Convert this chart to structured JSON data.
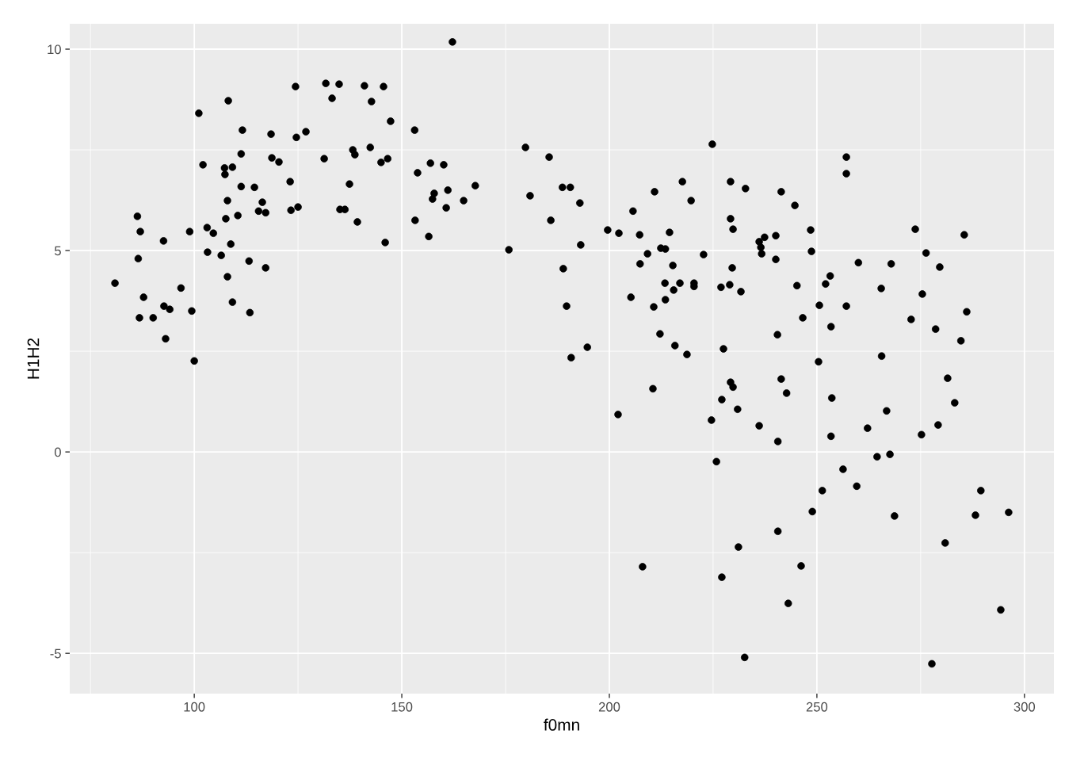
{
  "chart_data": {
    "type": "scatter",
    "xlabel": "f0mn",
    "ylabel": "H1H2",
    "xlim": [
      70.0,
      307.1
    ],
    "ylim": [
      -6.0,
      10.63
    ],
    "xticks": [
      100,
      150,
      200,
      250,
      300
    ],
    "yticks": [
      -5,
      0,
      5,
      10
    ],
    "grid": true,
    "marker": "circle",
    "series": [
      {
        "color": "#000000",
        "x": [
          80.9,
          86.3,
          86.5,
          87.0,
          86.8,
          87.8,
          90.1,
          92.6,
          92.7,
          93.1,
          94.1,
          96.8,
          98.9,
          99.4,
          100.0,
          101.1,
          102.1,
          103.1,
          103.2,
          104.6,
          106.5,
          107.3,
          107.4,
          107.6,
          108.0,
          108.0,
          108.2,
          108.8,
          109.2,
          109.2,
          110.5,
          111.3,
          111.3,
          111.6,
          113.2,
          113.4,
          114.5,
          115.5,
          116.4,
          117.2,
          117.2,
          118.5,
          118.7,
          120.4,
          123.1,
          123.3,
          124.4,
          124.6,
          125.0,
          126.9,
          131.3,
          131.7,
          133.2,
          134.9,
          135.1,
          136.3,
          137.4,
          138.2,
          138.7,
          139.3,
          141.0,
          142.4,
          142.7,
          145.0,
          145.6,
          146.0,
          146.6,
          147.3,
          153.1,
          153.2,
          153.8,
          156.5,
          156.9,
          157.4,
          157.8,
          160.1,
          160.7,
          161.1,
          162.2,
          164.9,
          167.7,
          175.8,
          179.8,
          180.9,
          185.5,
          185.9,
          188.7,
          188.9,
          189.7,
          190.6,
          190.8,
          192.9,
          193.1,
          194.7,
          199.6,
          202.1,
          202.3,
          205.2,
          205.7,
          207.3,
          207.4,
          208.0,
          209.2,
          210.5,
          210.7,
          210.9,
          212.2,
          212.4,
          213.4,
          213.5,
          213.5,
          214.5,
          215.3,
          215.5,
          215.8,
          217.0,
          217.6,
          218.7,
          219.7,
          220.4,
          220.4,
          222.7,
          224.6,
          224.8,
          225.8,
          226.9,
          227.1,
          227.1,
          227.5,
          229.0,
          229.2,
          229.2,
          229.2,
          229.6,
          229.8,
          229.8,
          230.9,
          231.1,
          231.7,
          232.6,
          232.8,
          236.1,
          236.1,
          236.5,
          236.7,
          237.4,
          240.1,
          240.1,
          240.5,
          240.6,
          240.6,
          241.4,
          241.4,
          242.7,
          243.1,
          244.7,
          245.2,
          246.2,
          246.6,
          248.5,
          248.7,
          248.9,
          250.4,
          250.6,
          251.3,
          252.1,
          253.2,
          253.4,
          253.6,
          253.4,
          256.3,
          257.1,
          257.1,
          257.1,
          259.6,
          260.0,
          262.2,
          264.5,
          265.5,
          265.6,
          266.8,
          267.6,
          267.9,
          268.7,
          272.7,
          273.7,
          275.2,
          275.4,
          276.3,
          277.7,
          278.6,
          279.2,
          279.6,
          280.9,
          281.5,
          283.2,
          284.7,
          285.5,
          286.1,
          288.2,
          289.5,
          294.3,
          296.2
        ],
        "values": [
          4.19,
          5.85,
          4.8,
          5.47,
          3.33,
          3.84,
          3.33,
          5.24,
          3.62,
          2.81,
          3.54,
          4.07,
          5.47,
          3.5,
          2.26,
          8.41,
          7.13,
          5.57,
          4.96,
          5.43,
          4.88,
          7.05,
          6.89,
          5.79,
          6.24,
          4.35,
          8.72,
          5.16,
          7.07,
          3.72,
          5.87,
          6.59,
          7.4,
          7.99,
          4.74,
          3.46,
          6.57,
          5.98,
          6.2,
          5.94,
          4.57,
          7.89,
          7.3,
          7.2,
          6.71,
          6.0,
          9.07,
          7.81,
          6.08,
          7.95,
          7.28,
          9.15,
          8.78,
          9.13,
          6.02,
          6.02,
          6.65,
          7.5,
          7.38,
          5.71,
          9.09,
          7.56,
          8.7,
          7.19,
          9.07,
          5.2,
          7.28,
          8.21,
          7.99,
          5.75,
          6.93,
          5.35,
          7.17,
          6.28,
          6.42,
          7.13,
          6.06,
          6.5,
          10.18,
          6.24,
          6.61,
          5.02,
          7.56,
          6.36,
          7.32,
          5.75,
          6.57,
          4.55,
          3.62,
          6.57,
          2.34,
          6.18,
          5.14,
          2.6,
          5.51,
          0.93,
          5.43,
          3.84,
          5.98,
          5.39,
          4.67,
          -2.85,
          4.92,
          1.57,
          3.6,
          6.46,
          2.93,
          5.06,
          4.19,
          3.78,
          5.04,
          5.45,
          4.63,
          4.02,
          2.64,
          4.19,
          6.71,
          2.42,
          6.24,
          4.19,
          4.11,
          4.9,
          0.79,
          7.64,
          -0.24,
          4.09,
          -3.11,
          1.3,
          2.56,
          4.15,
          6.71,
          5.79,
          1.73,
          4.57,
          5.53,
          1.61,
          1.06,
          -2.36,
          3.98,
          -5.1,
          6.54,
          0.65,
          5.22,
          5.08,
          4.92,
          5.33,
          5.37,
          4.78,
          2.91,
          0.26,
          -1.97,
          6.46,
          1.81,
          1.46,
          -3.76,
          6.12,
          4.13,
          -2.83,
          3.33,
          5.51,
          4.98,
          -1.48,
          2.24,
          3.64,
          -0.96,
          4.17,
          4.37,
          3.11,
          1.34,
          0.39,
          -0.43,
          7.32,
          6.91,
          3.62,
          -0.85,
          4.7,
          0.59,
          -0.12,
          4.06,
          2.38,
          1.02,
          -0.06,
          4.67,
          -1.59,
          3.29,
          5.53,
          0.43,
          3.92,
          4.94,
          -5.26,
          3.05,
          0.67,
          4.59,
          -2.26,
          1.83,
          1.22,
          2.76,
          5.39,
          3.48,
          -1.57,
          -0.96,
          -3.92,
          -1.5
        ]
      }
    ]
  }
}
